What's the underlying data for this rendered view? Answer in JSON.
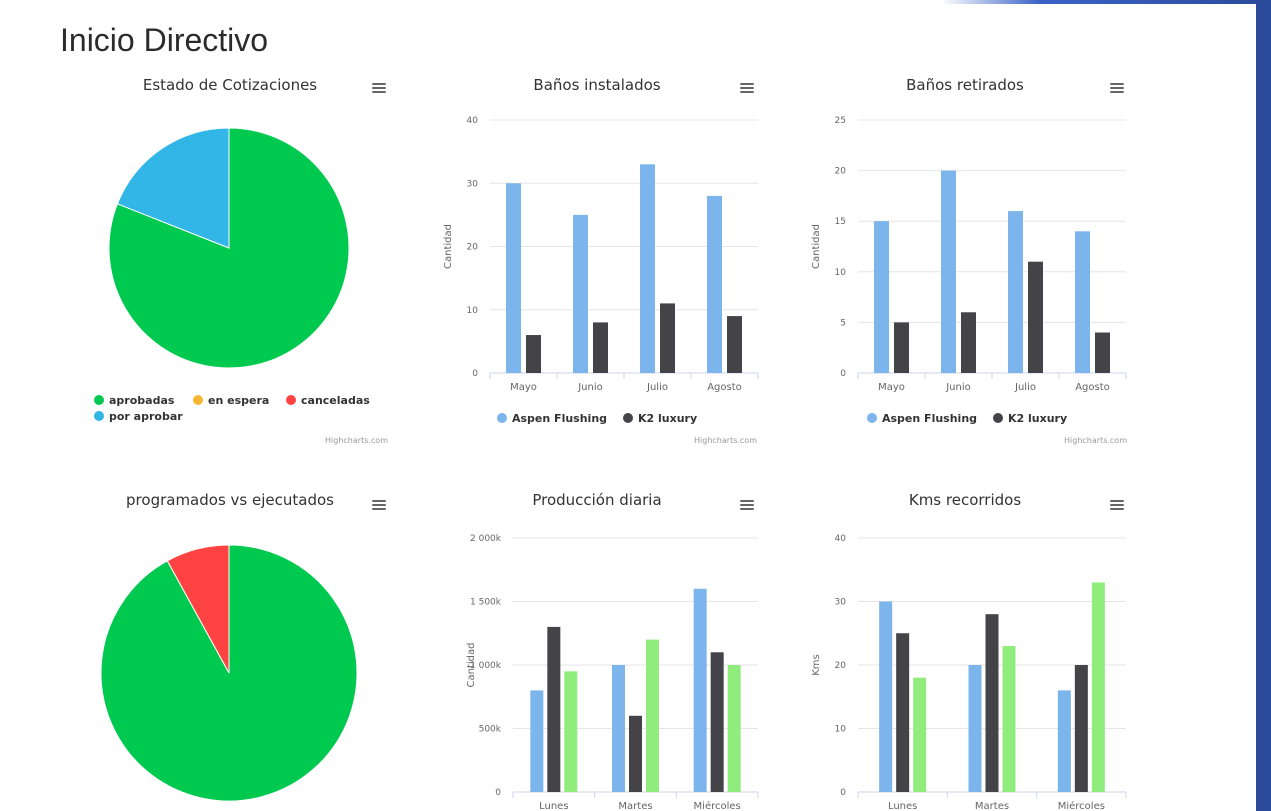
{
  "page": {
    "title": "Inicio Directivo"
  },
  "credits": "Highcharts.com",
  "colors": {
    "green": "#00c94f",
    "orange": "#f7b733",
    "red": "#ff4343",
    "cyan": "#31b6e7",
    "blue": "#7cb5ec",
    "dark": "#434348",
    "lightgreen": "#90ed7d"
  },
  "chart_data": [
    {
      "id": "estado-cotizaciones",
      "type": "pie",
      "title": "Estado de Cotizaciones",
      "slices": [
        {
          "name": "aprobadas",
          "value": 81,
          "color": "#00c94f"
        },
        {
          "name": "en espera",
          "value": 0,
          "color": "#f7b733"
        },
        {
          "name": "canceladas",
          "value": 0,
          "color": "#ff4343"
        },
        {
          "name": "por aprobar",
          "value": 19,
          "color": "#31b6e7"
        }
      ],
      "legend": [
        "aprobadas",
        "en espera",
        "canceladas",
        "por aprobar"
      ]
    },
    {
      "id": "banos-instalados",
      "type": "bar",
      "title": "Baños instalados",
      "ylabel": "Cantidad",
      "ylim": [
        0,
        40
      ],
      "yticks": [
        0,
        10,
        20,
        30,
        40
      ],
      "ytick_labels": [
        "0",
        "10",
        "20",
        "30",
        "40"
      ],
      "categories": [
        "Mayo",
        "Junio",
        "Julio",
        "Agosto"
      ],
      "series": [
        {
          "name": "Aspen Flushing",
          "color": "#7cb5ec",
          "values": [
            30,
            25,
            33,
            28
          ]
        },
        {
          "name": "K2 luxury",
          "color": "#434348",
          "values": [
            6,
            8,
            11,
            9
          ]
        }
      ]
    },
    {
      "id": "banos-retirados",
      "type": "bar",
      "title": "Baños retirados",
      "ylabel": "Cantidad",
      "ylim": [
        0,
        25
      ],
      "yticks": [
        0,
        5,
        10,
        15,
        20,
        25
      ],
      "ytick_labels": [
        "0",
        "5",
        "10",
        "15",
        "20",
        "25"
      ],
      "categories": [
        "Mayo",
        "Junio",
        "Julio",
        "Agosto"
      ],
      "series": [
        {
          "name": "Aspen Flushing",
          "color": "#7cb5ec",
          "values": [
            15,
            20,
            16,
            14
          ]
        },
        {
          "name": "K2 luxury",
          "color": "#434348",
          "values": [
            5,
            6,
            11,
            4
          ]
        }
      ]
    },
    {
      "id": "programados-ejecutados",
      "type": "pie",
      "title": "programados vs ejecutados",
      "slices": [
        {
          "value": 92,
          "color": "#00c94f"
        },
        {
          "value": 8,
          "color": "#ff4343"
        }
      ]
    },
    {
      "id": "produccion-diaria",
      "type": "bar",
      "title": "Producción diaria",
      "ylabel": "Cantidad",
      "ylim": [
        0,
        2000000
      ],
      "yticks": [
        0,
        500000,
        1000000,
        1500000,
        2000000
      ],
      "ytick_labels": [
        "0",
        "500k",
        "1 000k",
        "1 500k",
        "2 000k"
      ],
      "categories": [
        "Lunes",
        "Martes",
        "Miércoles"
      ],
      "series": [
        {
          "color": "#7cb5ec",
          "values": [
            800000,
            1000000,
            1600000
          ]
        },
        {
          "color": "#434348",
          "values": [
            1300000,
            600000,
            1100000
          ]
        },
        {
          "color": "#90ed7d",
          "values": [
            950000,
            1200000,
            1000000
          ]
        }
      ]
    },
    {
      "id": "kms-recorridos",
      "type": "bar",
      "title": "Kms recorridos",
      "ylabel": "Kms",
      "ylim": [
        0,
        40
      ],
      "yticks": [
        0,
        10,
        20,
        30,
        40
      ],
      "ytick_labels": [
        "0",
        "10",
        "20",
        "30",
        "40"
      ],
      "categories": [
        "Lunes",
        "Martes",
        "Miércoles"
      ],
      "series": [
        {
          "color": "#7cb5ec",
          "values": [
            30,
            20,
            16
          ]
        },
        {
          "color": "#434348",
          "values": [
            25,
            28,
            20
          ]
        },
        {
          "color": "#90ed7d",
          "values": [
            18,
            23,
            33
          ]
        }
      ]
    }
  ]
}
